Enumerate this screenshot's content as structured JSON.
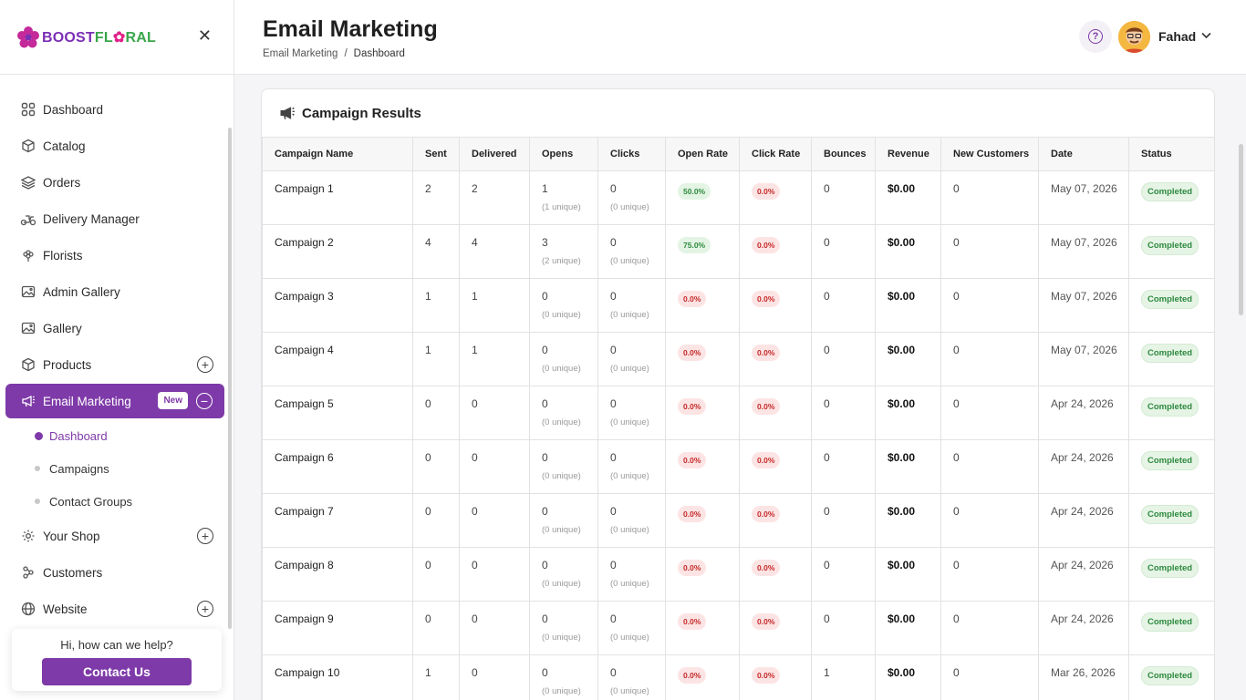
{
  "brand": {
    "logo_text_part1": "BOOST",
    "logo_text_part2": "FL",
    "logo_text_o": "✿",
    "logo_text_part3": "RAL"
  },
  "sidebar": {
    "items": [
      {
        "label": "Dashboard",
        "icon": "grid-icon"
      },
      {
        "label": "Catalog",
        "icon": "box-icon"
      },
      {
        "label": "Orders",
        "icon": "layers-icon"
      },
      {
        "label": "Delivery Manager",
        "icon": "scooter-icon"
      },
      {
        "label": "Florists",
        "icon": "flower-icon"
      },
      {
        "label": "Admin Gallery",
        "icon": "image-icon"
      },
      {
        "label": "Gallery",
        "icon": "image-icon"
      },
      {
        "label": "Products",
        "icon": "box-icon"
      },
      {
        "label": "Email Marketing",
        "icon": "megaphone-icon",
        "badge": "New"
      },
      {
        "label": "Your Shop",
        "icon": "gear-icon"
      },
      {
        "label": "Customers",
        "icon": "users-icon"
      },
      {
        "label": "Website",
        "icon": "globe-icon"
      }
    ],
    "sub_items": [
      "Dashboard",
      "Campaigns",
      "Contact Groups"
    ],
    "help_text": "Hi, how can we help?",
    "contact_button": "Contact Us"
  },
  "header": {
    "title": "Email Marketing",
    "breadcrumb": [
      "Email Marketing",
      "Dashboard"
    ],
    "breadcrumb_sep": "/",
    "user_name": "Fahad"
  },
  "card": {
    "title": "Campaign Results",
    "columns": [
      "Campaign Name",
      "Sent",
      "Delivered",
      "Opens",
      "Clicks",
      "Open Rate",
      "Click Rate",
      "Bounces",
      "Revenue",
      "New Customers",
      "Date",
      "Status"
    ],
    "rows": [
      {
        "name": "Campaign 1",
        "sent": "2",
        "delivered": "2",
        "opens": "1",
        "opens_unique": "(1 unique)",
        "clicks": "0",
        "clicks_unique": "(0 unique)",
        "open_rate": "50.0%",
        "open_rate_good": true,
        "click_rate": "0.0%",
        "bounces": "0",
        "revenue": "$0.00",
        "new_customers": "0",
        "date": "May 07, 2026",
        "status": "Completed"
      },
      {
        "name": "Campaign 2",
        "sent": "4",
        "delivered": "4",
        "opens": "3",
        "opens_unique": "(2 unique)",
        "clicks": "0",
        "clicks_unique": "(0 unique)",
        "open_rate": "75.0%",
        "open_rate_good": true,
        "click_rate": "0.0%",
        "bounces": "0",
        "revenue": "$0.00",
        "new_customers": "0",
        "date": "May 07, 2026",
        "status": "Completed"
      },
      {
        "name": "Campaign 3",
        "sent": "1",
        "delivered": "1",
        "opens": "0",
        "opens_unique": "(0 unique)",
        "clicks": "0",
        "clicks_unique": "(0 unique)",
        "open_rate": "0.0%",
        "open_rate_good": false,
        "click_rate": "0.0%",
        "bounces": "0",
        "revenue": "$0.00",
        "new_customers": "0",
        "date": "May 07, 2026",
        "status": "Completed"
      },
      {
        "name": "Campaign 4",
        "sent": "1",
        "delivered": "1",
        "opens": "0",
        "opens_unique": "(0 unique)",
        "clicks": "0",
        "clicks_unique": "(0 unique)",
        "open_rate": "0.0%",
        "open_rate_good": false,
        "click_rate": "0.0%",
        "bounces": "0",
        "revenue": "$0.00",
        "new_customers": "0",
        "date": "May 07, 2026",
        "status": "Completed"
      },
      {
        "name": "Campaign 5",
        "sent": "0",
        "delivered": "0",
        "opens": "0",
        "opens_unique": "(0 unique)",
        "clicks": "0",
        "clicks_unique": "(0 unique)",
        "open_rate": "0.0%",
        "open_rate_good": false,
        "click_rate": "0.0%",
        "bounces": "0",
        "revenue": "$0.00",
        "new_customers": "0",
        "date": "Apr 24, 2026",
        "status": "Completed"
      },
      {
        "name": "Campaign 6",
        "sent": "0",
        "delivered": "0",
        "opens": "0",
        "opens_unique": "(0 unique)",
        "clicks": "0",
        "clicks_unique": "(0 unique)",
        "open_rate": "0.0%",
        "open_rate_good": false,
        "click_rate": "0.0%",
        "bounces": "0",
        "revenue": "$0.00",
        "new_customers": "0",
        "date": "Apr 24, 2026",
        "status": "Completed"
      },
      {
        "name": "Campaign 7",
        "sent": "0",
        "delivered": "0",
        "opens": "0",
        "opens_unique": "(0 unique)",
        "clicks": "0",
        "clicks_unique": "(0 unique)",
        "open_rate": "0.0%",
        "open_rate_good": false,
        "click_rate": "0.0%",
        "bounces": "0",
        "revenue": "$0.00",
        "new_customers": "0",
        "date": "Apr 24, 2026",
        "status": "Completed"
      },
      {
        "name": "Campaign 8",
        "sent": "0",
        "delivered": "0",
        "opens": "0",
        "opens_unique": "(0 unique)",
        "clicks": "0",
        "clicks_unique": "(0 unique)",
        "open_rate": "0.0%",
        "open_rate_good": false,
        "click_rate": "0.0%",
        "bounces": "0",
        "revenue": "$0.00",
        "new_customers": "0",
        "date": "Apr 24, 2026",
        "status": "Completed"
      },
      {
        "name": "Campaign 9",
        "sent": "0",
        "delivered": "0",
        "opens": "0",
        "opens_unique": "(0 unique)",
        "clicks": "0",
        "clicks_unique": "(0 unique)",
        "open_rate": "0.0%",
        "open_rate_good": false,
        "click_rate": "0.0%",
        "bounces": "0",
        "revenue": "$0.00",
        "new_customers": "0",
        "date": "Apr 24, 2026",
        "status": "Completed"
      },
      {
        "name": "Campaign 10",
        "sent": "1",
        "delivered": "0",
        "opens": "0",
        "opens_unique": "(0 unique)",
        "clicks": "0",
        "clicks_unique": "(0 unique)",
        "open_rate": "0.0%",
        "open_rate_good": false,
        "click_rate": "0.0%",
        "bounces": "1",
        "revenue": "$0.00",
        "new_customers": "0",
        "date": "Mar 26, 2026",
        "status": "Completed"
      }
    ]
  },
  "colors": {
    "accent": "#7e3aa8",
    "success": "#2d8a3e",
    "danger": "#c62828"
  }
}
